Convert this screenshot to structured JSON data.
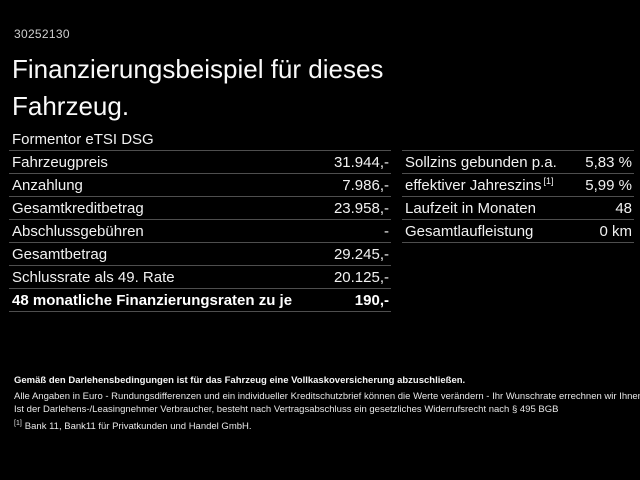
{
  "page": {
    "vehicle_id": "30252130",
    "title": "Finanzierungsbeispiel für dieses Fahrzeug.",
    "model": "Formentor eTSI DSG"
  },
  "finance_table": {
    "rows": [
      {
        "label": "Fahrzeugpreis",
        "value": "31.944,-"
      },
      {
        "label": "Anzahlung",
        "value": "7.986,-"
      },
      {
        "label": "Gesamtkreditbetrag",
        "value": "23.958,-"
      },
      {
        "label": "Abschlussgebühren",
        "value": "-"
      },
      {
        "label": "Gesamtbetrag",
        "value": "29.245,-"
      },
      {
        "label": "Schlussrate als 49. Rate",
        "value": "20.125,-"
      },
      {
        "label": "48 monatliche Finanzierungsraten zu je",
        "value": "190,-"
      }
    ]
  },
  "conditions_table": {
    "rows": [
      {
        "label": "Sollzins gebunden p.a.",
        "value": "5,83 %"
      },
      {
        "label": "effektiver Jahreszins",
        "sup": "[1]",
        "value": "5,99 %"
      },
      {
        "label": "Laufzeit in Monaten",
        "value": "48"
      },
      {
        "label": "Gesamtlaufleistung",
        "value": "0 km"
      }
    ]
  },
  "footer": {
    "insurance_note": "Gemäß den Darlehensbedingungen ist für das Fahrzeug eine Vollkaskoversicherung abzuschließen.",
    "disclaimer_1": "Alle Angaben in Euro - Rundungsdifferenzen und ein individueller Kreditschutzbrief können die Werte verändern - Ihr Wunschrate errechnen wir Ihnen gerne persönlich",
    "disclaimer_2": "Ist der Darlehens-/Leasingnehmer Verbraucher, besteht nach Vertragsabschluss ein gesetzliches Widerrufsrecht nach § 495 BGB",
    "footnote_marker": "[1]",
    "footnote": "Bank 11, Bank11 für Privatkunden und Handel GmbH."
  },
  "colors": {
    "background": "#000000",
    "text": "#f2f2f2",
    "divider": "#4e4e4e"
  }
}
